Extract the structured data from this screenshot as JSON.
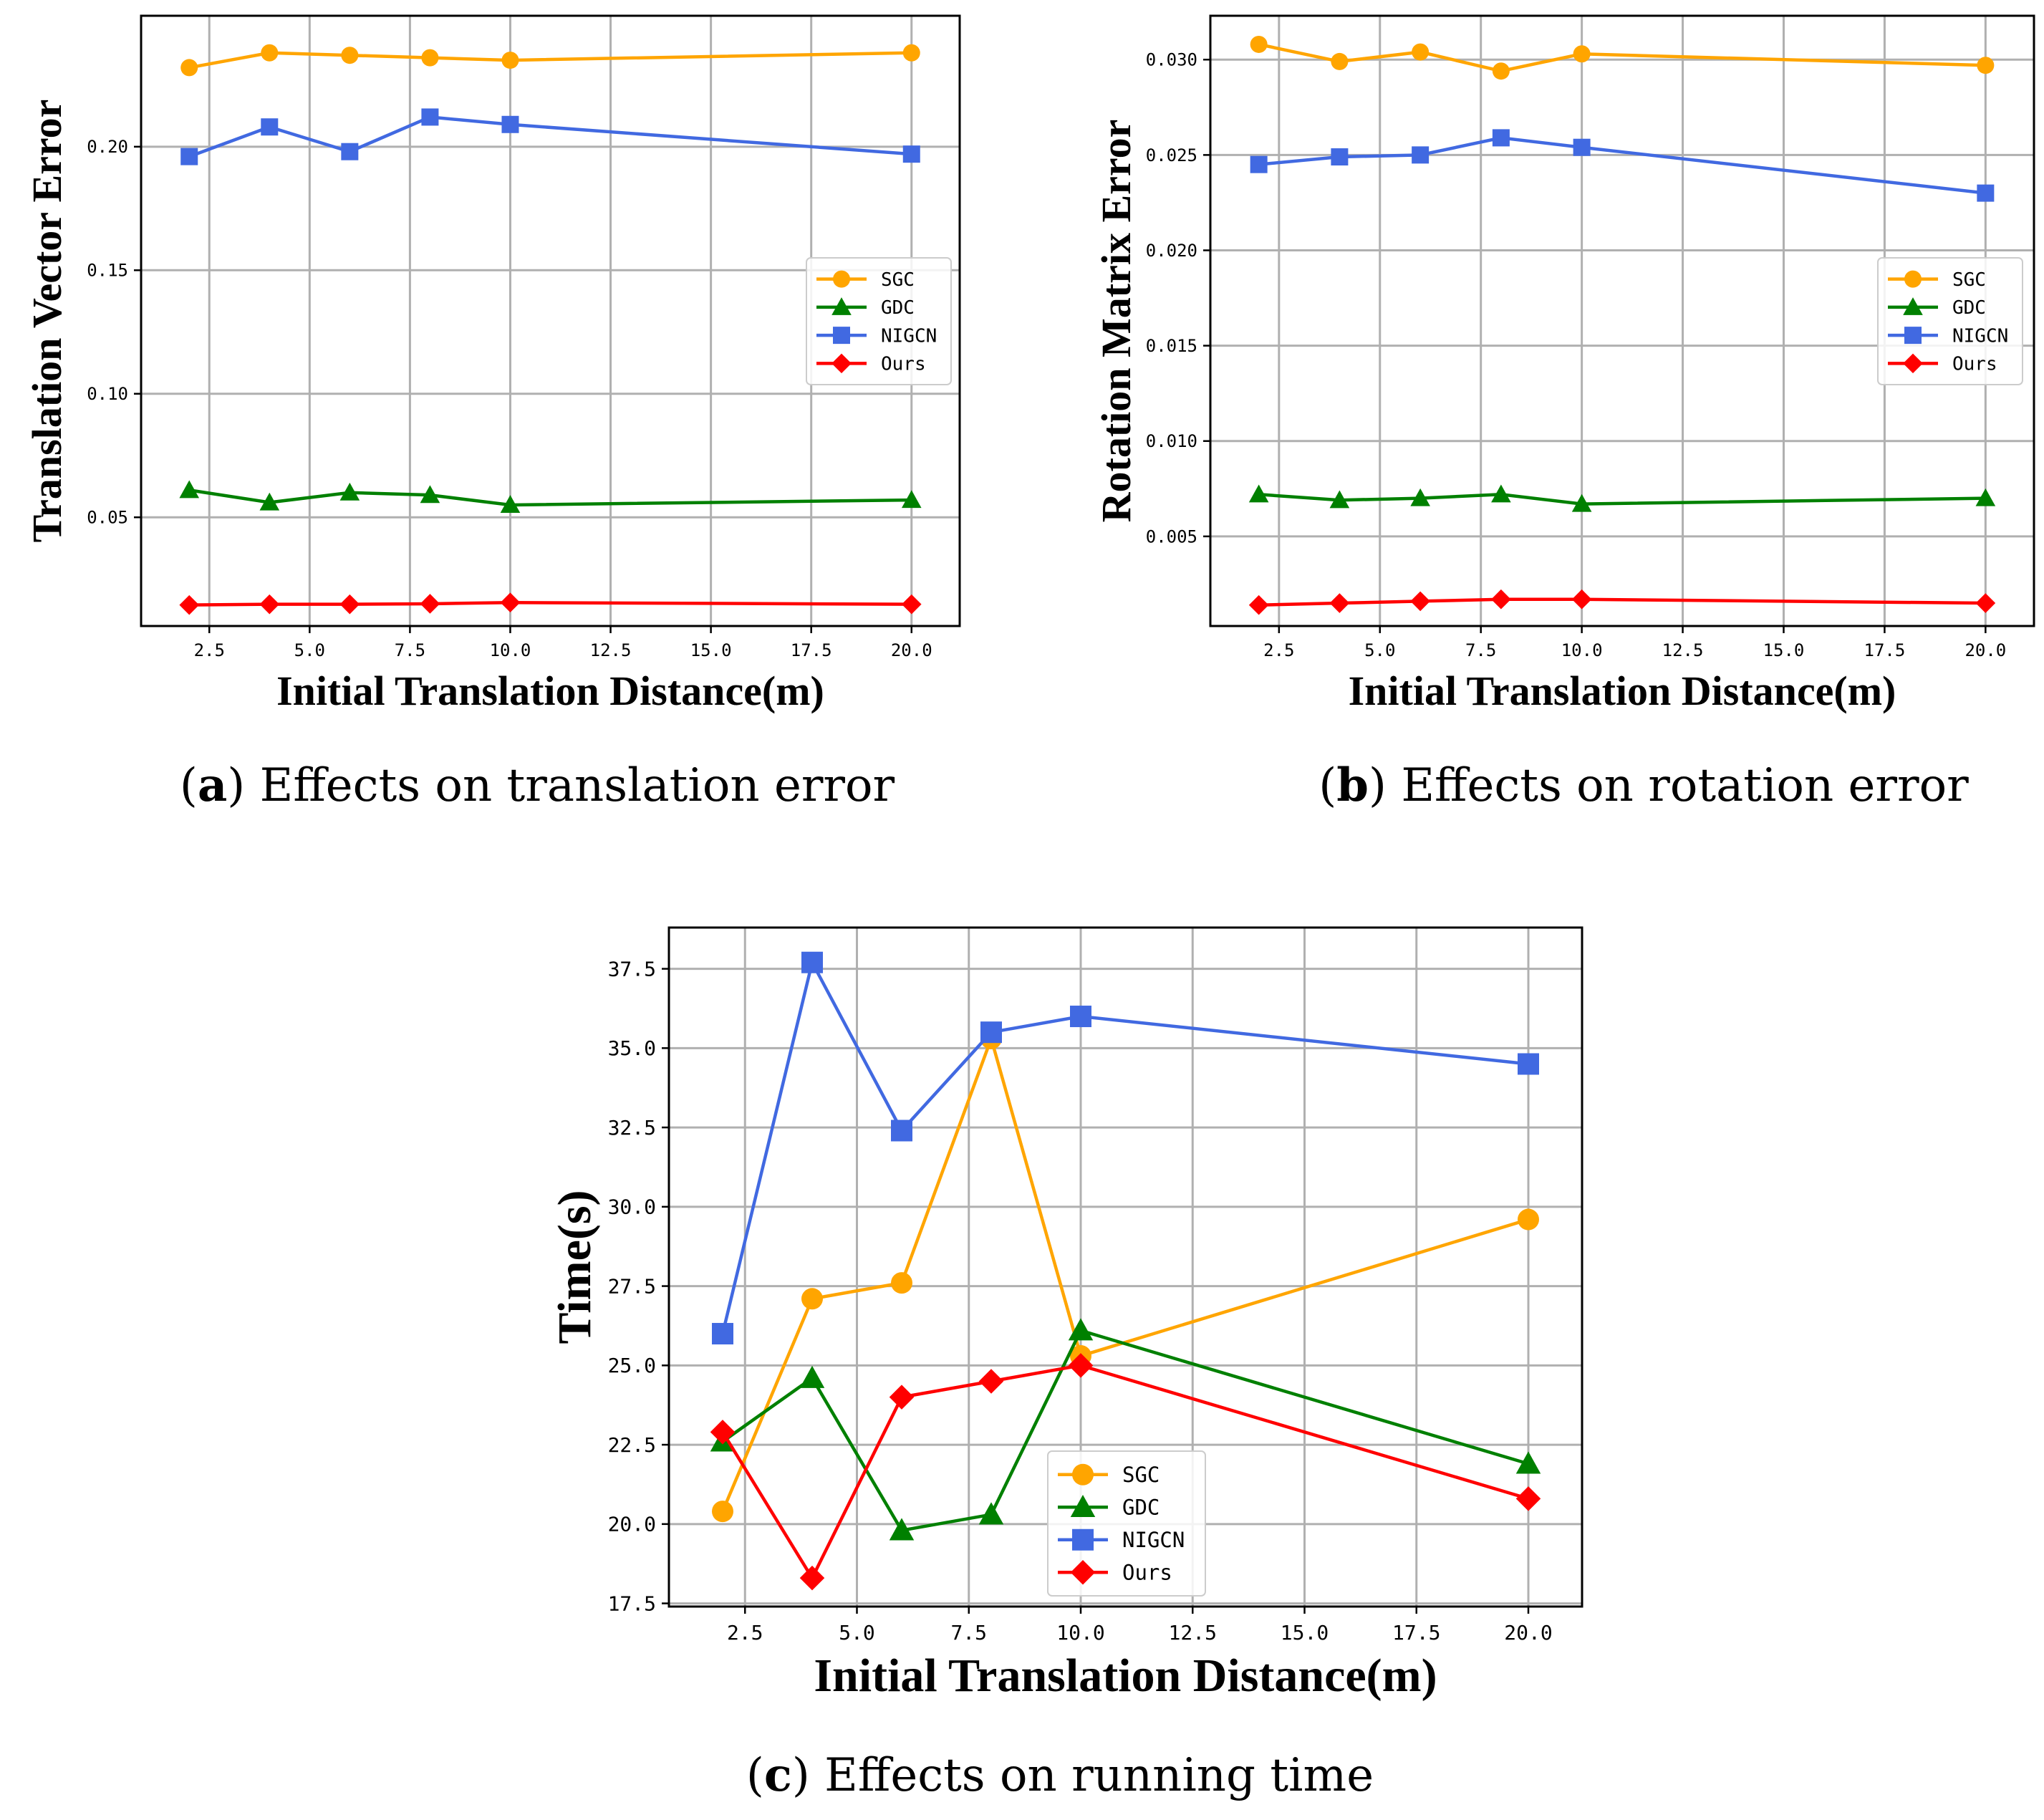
{
  "figure": {
    "caption_a_letter": "a",
    "caption_a_text": "Effects on translation error",
    "caption_b_letter": "b",
    "caption_b_text": "Effects on rotation error",
    "caption_c_letter": "c",
    "caption_c_text": "Effects on running time"
  },
  "colors": {
    "SGC": "#FFA500",
    "GDC": "#008000",
    "NIGCN": "#4169E1",
    "Ours": "#FF0000",
    "grid": "#b0b0b0",
    "axis": "#000000"
  },
  "chart_data": [
    {
      "type": "line",
      "title": "",
      "xlabel": "Initial Translation Distance(m)",
      "ylabel": "Translation Vector Error",
      "x": [
        2,
        4,
        6,
        8,
        10,
        20
      ],
      "xlim": [
        0.8,
        21.2
      ],
      "ylim": [
        0.006,
        0.253
      ],
      "xticks": [
        2.5,
        5.0,
        7.5,
        10.0,
        12.5,
        15.0,
        17.5,
        20.0
      ],
      "xtick_labels": [
        "2.5",
        "5.0",
        "7.5",
        "10.0",
        "12.5",
        "15.0",
        "17.5",
        "20.0"
      ],
      "yticks": [
        0.05,
        0.1,
        0.15,
        0.2
      ],
      "ytick_labels": [
        "0.05",
        "0.10",
        "0.15",
        "0.20"
      ],
      "grid": true,
      "legend_position": "center-right",
      "series": [
        {
          "name": "SGC",
          "marker": "circle",
          "values": [
            0.232,
            0.238,
            0.237,
            0.236,
            0.235,
            0.238
          ]
        },
        {
          "name": "GDC",
          "marker": "triangle",
          "values": [
            0.061,
            0.056,
            0.06,
            0.059,
            0.055,
            0.057
          ]
        },
        {
          "name": "NIGCN",
          "marker": "square",
          "values": [
            0.196,
            0.208,
            0.198,
            0.212,
            0.209,
            0.197
          ]
        },
        {
          "name": "Ours",
          "marker": "diamond",
          "values": [
            0.0145,
            0.0148,
            0.0148,
            0.015,
            0.0155,
            0.0148
          ]
        }
      ]
    },
    {
      "type": "line",
      "title": "",
      "xlabel": "Initial Translation Distance(m)",
      "ylabel": "Rotation Matrix Error",
      "x": [
        2,
        4,
        6,
        8,
        10,
        20
      ],
      "xlim": [
        0.8,
        21.2
      ],
      "ylim": [
        0.0003,
        0.0323
      ],
      "xticks": [
        2.5,
        5.0,
        7.5,
        10.0,
        12.5,
        15.0,
        17.5,
        20.0
      ],
      "xtick_labels": [
        "2.5",
        "5.0",
        "7.5",
        "10.0",
        "12.5",
        "15.0",
        "17.5",
        "20.0"
      ],
      "yticks": [
        0.005,
        0.01,
        0.015,
        0.02,
        0.025,
        0.03
      ],
      "ytick_labels": [
        "0.005",
        "0.010",
        "0.015",
        "0.020",
        "0.025",
        "0.030"
      ],
      "grid": true,
      "legend_position": "center-right",
      "series": [
        {
          "name": "SGC",
          "marker": "circle",
          "values": [
            0.0308,
            0.0299,
            0.0304,
            0.0294,
            0.0303,
            0.0297
          ]
        },
        {
          "name": "GDC",
          "marker": "triangle",
          "values": [
            0.0072,
            0.0069,
            0.007,
            0.0072,
            0.0067,
            0.007
          ]
        },
        {
          "name": "NIGCN",
          "marker": "square",
          "values": [
            0.0245,
            0.0249,
            0.025,
            0.0259,
            0.0254,
            0.023
          ]
        },
        {
          "name": "Ours",
          "marker": "diamond",
          "values": [
            0.0014,
            0.0015,
            0.0016,
            0.0017,
            0.0017,
            0.0015
          ]
        }
      ]
    },
    {
      "type": "line",
      "title": "",
      "xlabel": "Initial Translation Distance(m)",
      "ylabel": "Time(s)",
      "x": [
        2,
        4,
        6,
        8,
        10,
        20
      ],
      "xlim": [
        0.8,
        21.2
      ],
      "ylim": [
        17.4,
        38.8
      ],
      "xticks": [
        2.5,
        5.0,
        7.5,
        10.0,
        12.5,
        15.0,
        17.5,
        20.0
      ],
      "xtick_labels": [
        "2.5",
        "5.0",
        "7.5",
        "10.0",
        "12.5",
        "15.0",
        "17.5",
        "20.0"
      ],
      "yticks": [
        17.5,
        20.0,
        22.5,
        25.0,
        27.5,
        30.0,
        32.5,
        35.0,
        37.5
      ],
      "ytick_labels": [
        "17.5",
        "20.0",
        "22.5",
        "25.0",
        "27.5",
        "30.0",
        "32.5",
        "35.0",
        "37.5"
      ],
      "grid": true,
      "legend_position": "lower-center",
      "series": [
        {
          "name": "SGC",
          "marker": "circle",
          "values": [
            20.4,
            27.1,
            27.6,
            35.3,
            25.3,
            29.6
          ]
        },
        {
          "name": "GDC",
          "marker": "triangle",
          "values": [
            22.6,
            24.6,
            19.8,
            20.3,
            26.1,
            21.9
          ]
        },
        {
          "name": "NIGCN",
          "marker": "square",
          "values": [
            26.0,
            37.7,
            32.4,
            35.5,
            36.0,
            34.5
          ]
        },
        {
          "name": "Ours",
          "marker": "diamond",
          "values": [
            22.9,
            18.3,
            24.0,
            24.5,
            25.0,
            20.8
          ]
        }
      ]
    }
  ]
}
